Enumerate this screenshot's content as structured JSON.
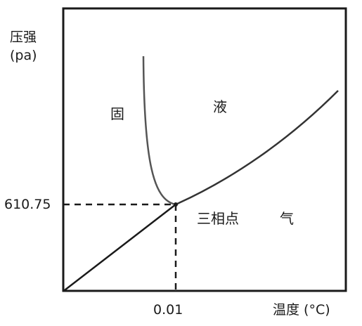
{
  "axes": {
    "y_label_line1": "压强",
    "y_label_line2": "(pa)",
    "x_label": "温度 (°C)",
    "y_tick": "610.75",
    "x_tick": "0.01"
  },
  "regions": {
    "solid": "固",
    "liquid": "液",
    "gas": "气",
    "triple_point": "三相点"
  },
  "triple_point": {
    "temperature": 0.01,
    "pressure": 610.75
  },
  "colors": {
    "line": "#1a1a1a",
    "melting_curve": "#555555"
  }
}
